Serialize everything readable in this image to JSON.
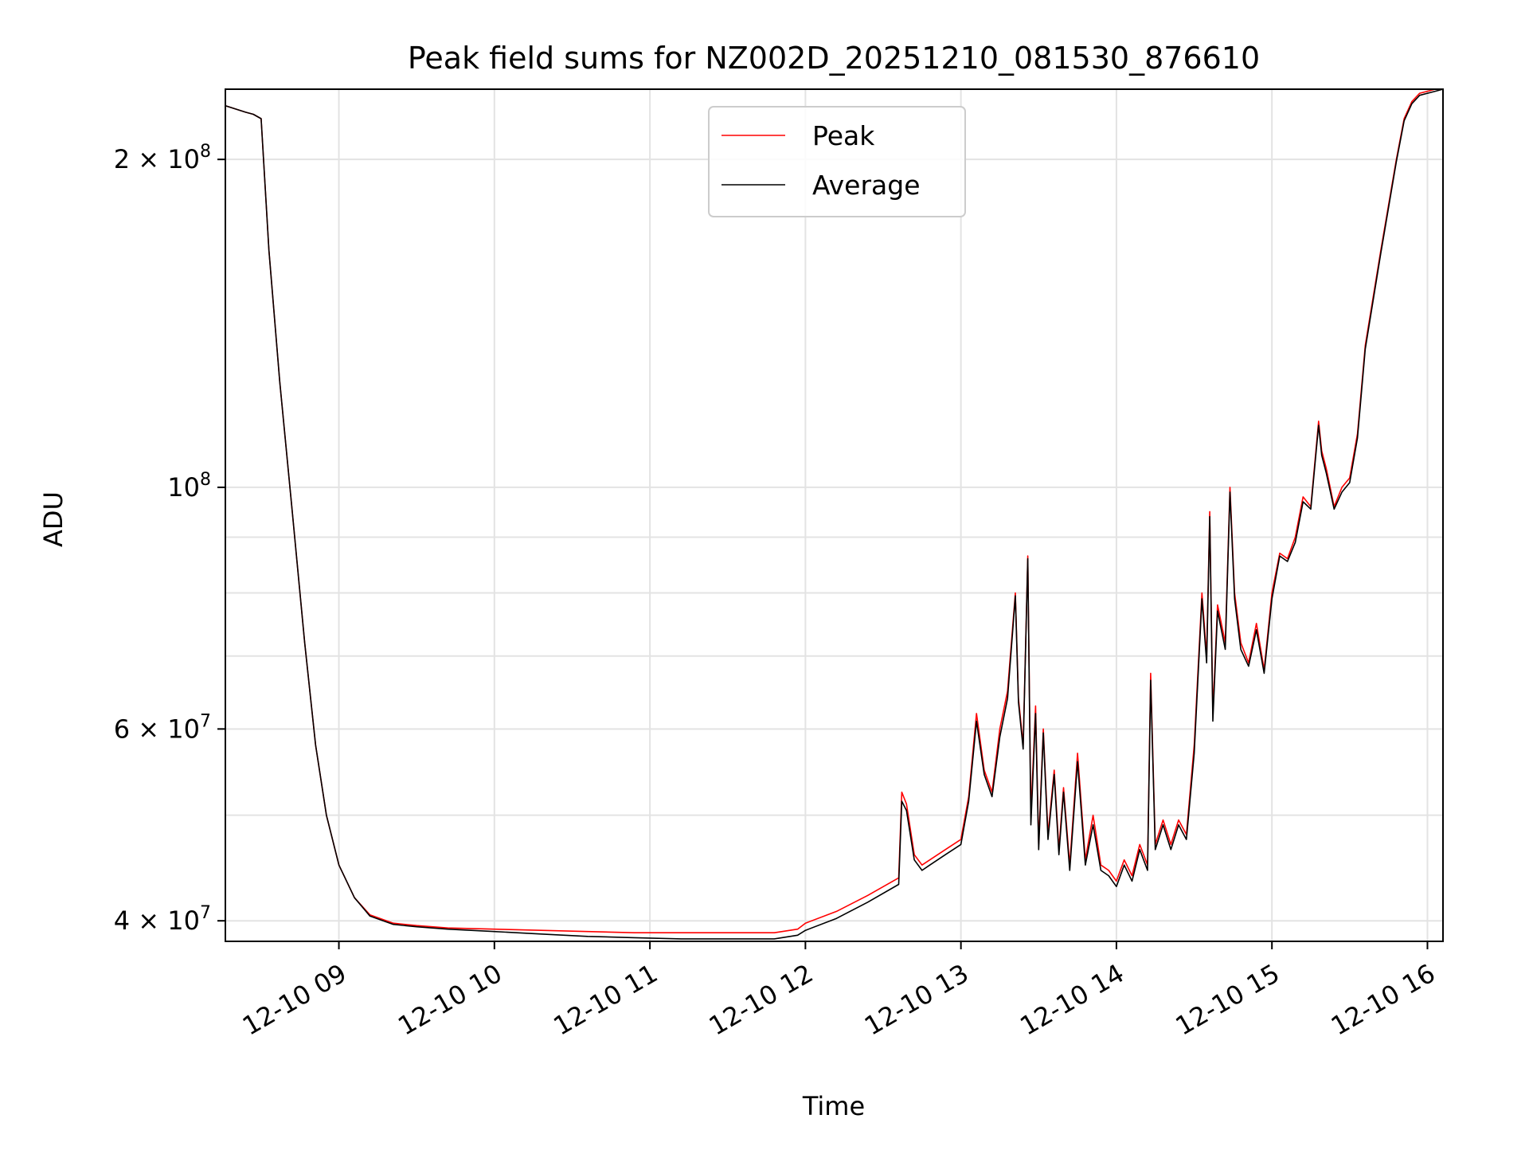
{
  "chart_data": {
    "type": "line",
    "title": "Peak field sums for NZ002D_20251210_081530_876610",
    "xlabel": "Time",
    "ylabel": "ADU",
    "yscale": "log",
    "xlim": [
      8.27,
      16.1
    ],
    "ylim": [
      38300000,
      232000000
    ],
    "grid": true,
    "legend": {
      "location": "upper-center",
      "entries": [
        "Peak",
        "Average"
      ]
    },
    "x_ticks": [
      {
        "value": 9,
        "label": "12-10 09"
      },
      {
        "value": 10,
        "label": "12-10 10"
      },
      {
        "value": 11,
        "label": "12-10 11"
      },
      {
        "value": 12,
        "label": "12-10 12"
      },
      {
        "value": 13,
        "label": "12-10 13"
      },
      {
        "value": 14,
        "label": "12-10 14"
      },
      {
        "value": 15,
        "label": "12-10 15"
      },
      {
        "value": 16,
        "label": "12-10 16"
      }
    ],
    "y_ticks_major": [
      {
        "value": 40000000,
        "mantissa": "4",
        "exp": "7",
        "times": true
      },
      {
        "value": 60000000,
        "mantissa": "6",
        "exp": "7",
        "times": true
      },
      {
        "value": 100000000,
        "mantissa": "10",
        "exp": "8",
        "times": false
      },
      {
        "value": 200000000,
        "mantissa": "2",
        "exp": "8",
        "times": true
      }
    ],
    "y_grid_minor": [
      50000000,
      70000000,
      80000000,
      90000000
    ],
    "series": [
      {
        "name": "Peak",
        "color": "#ff0000",
        "x": [
          8.27,
          8.4,
          8.45,
          8.5,
          8.55,
          8.62,
          8.7,
          8.78,
          8.85,
          8.92,
          9.0,
          9.1,
          9.2,
          9.35,
          9.5,
          9.7,
          10.0,
          10.3,
          10.6,
          10.9,
          11.2,
          11.5,
          11.8,
          11.95,
          12.0,
          12.2,
          12.4,
          12.6,
          12.62,
          12.65,
          12.7,
          12.75,
          12.8,
          12.9,
          13.0,
          13.05,
          13.1,
          13.15,
          13.2,
          13.25,
          13.3,
          13.35,
          13.37,
          13.4,
          13.43,
          13.45,
          13.48,
          13.5,
          13.53,
          13.56,
          13.6,
          13.63,
          13.66,
          13.7,
          13.75,
          13.8,
          13.85,
          13.9,
          13.95,
          14.0,
          14.05,
          14.1,
          14.15,
          14.2,
          14.22,
          14.25,
          14.3,
          14.35,
          14.4,
          14.45,
          14.5,
          14.55,
          14.58,
          14.6,
          14.62,
          14.65,
          14.7,
          14.73,
          14.76,
          14.8,
          14.85,
          14.9,
          14.95,
          15.0,
          15.05,
          15.1,
          15.15,
          15.2,
          15.25,
          15.3,
          15.32,
          15.35,
          15.4,
          15.45,
          15.5,
          15.55,
          15.6,
          15.7,
          15.8,
          15.85,
          15.9,
          15.95,
          16.0,
          16.05,
          16.1
        ],
        "y": [
          224000000,
          221000000,
          220000000,
          218000000,
          165000000,
          125000000,
          95000000,
          72000000,
          58000000,
          50000000,
          45000000,
          42000000,
          40500000,
          39800000,
          39600000,
          39400000,
          39300000,
          39200000,
          39100000,
          39000000,
          39000000,
          39000000,
          39000000,
          39300000,
          39800000,
          40800000,
          42200000,
          43800000,
          52500000,
          51200000,
          46000000,
          45000000,
          45500000,
          46500000,
          47500000,
          52000000,
          62000000,
          55000000,
          52500000,
          60000000,
          65000000,
          80000000,
          64000000,
          58000000,
          86500000,
          50000000,
          63000000,
          47000000,
          60000000,
          48000000,
          55000000,
          46500000,
          53000000,
          45000000,
          57000000,
          45500000,
          50000000,
          45000000,
          44500000,
          43500000,
          45500000,
          44000000,
          47000000,
          45000000,
          67500000,
          47000000,
          49500000,
          47000000,
          49500000,
          48000000,
          58000000,
          80000000,
          70000000,
          95000000,
          62000000,
          78000000,
          72000000,
          100000000,
          80000000,
          72000000,
          69000000,
          75000000,
          68000000,
          80000000,
          87000000,
          86000000,
          90000000,
          98000000,
          96000000,
          115000000,
          108000000,
          104000000,
          96000000,
          100000000,
          102000000,
          112000000,
          135000000,
          165000000,
          200000000,
          218000000,
          226000000,
          230000000,
          231000000,
          232000000,
          232000000
        ]
      },
      {
        "name": "Average",
        "color": "#000000",
        "x": [
          8.27,
          8.4,
          8.45,
          8.5,
          8.55,
          8.62,
          8.7,
          8.78,
          8.85,
          8.92,
          9.0,
          9.1,
          9.2,
          9.35,
          9.5,
          9.7,
          10.0,
          10.3,
          10.6,
          10.9,
          11.2,
          11.5,
          11.8,
          11.95,
          12.0,
          12.2,
          12.4,
          12.6,
          12.62,
          12.65,
          12.7,
          12.75,
          12.8,
          12.9,
          13.0,
          13.05,
          13.1,
          13.15,
          13.2,
          13.25,
          13.3,
          13.35,
          13.37,
          13.4,
          13.43,
          13.45,
          13.48,
          13.5,
          13.53,
          13.56,
          13.6,
          13.63,
          13.66,
          13.7,
          13.75,
          13.8,
          13.85,
          13.9,
          13.95,
          14.0,
          14.05,
          14.1,
          14.15,
          14.2,
          14.22,
          14.25,
          14.3,
          14.35,
          14.4,
          14.45,
          14.5,
          14.55,
          14.58,
          14.6,
          14.62,
          14.65,
          14.7,
          14.73,
          14.76,
          14.8,
          14.85,
          14.9,
          14.95,
          15.0,
          15.05,
          15.1,
          15.15,
          15.2,
          15.25,
          15.3,
          15.32,
          15.35,
          15.4,
          15.45,
          15.5,
          15.55,
          15.6,
          15.7,
          15.8,
          15.85,
          15.9,
          15.95,
          16.0,
          16.05,
          16.1
        ],
        "y": [
          224000000,
          221000000,
          220000000,
          218000000,
          165000000,
          125000000,
          95000000,
          72000000,
          58000000,
          50000000,
          45000000,
          42000000,
          40400000,
          39700000,
          39500000,
          39300000,
          39100000,
          38900000,
          38700000,
          38600000,
          38500000,
          38500000,
          38500000,
          38800000,
          39200000,
          40200000,
          41600000,
          43200000,
          51500000,
          50500000,
          45500000,
          44500000,
          45000000,
          46000000,
          47000000,
          51500000,
          61000000,
          54500000,
          52000000,
          59000000,
          64000000,
          79500000,
          63500000,
          57500000,
          86000000,
          49000000,
          62000000,
          46500000,
          59500000,
          47500000,
          54500000,
          46000000,
          52500000,
          44500000,
          56000000,
          45000000,
          49000000,
          44500000,
          44000000,
          43000000,
          45000000,
          43500000,
          46500000,
          44500000,
          66500000,
          46500000,
          49000000,
          46500000,
          49000000,
          47500000,
          57000000,
          79000000,
          69000000,
          94000000,
          61000000,
          77000000,
          71000000,
          99000000,
          79000000,
          71000000,
          68500000,
          74000000,
          67500000,
          79000000,
          86500000,
          85500000,
          89000000,
          97000000,
          95500000,
          114000000,
          107000000,
          103000000,
          95500000,
          99000000,
          101000000,
          111000000,
          134000000,
          164000000,
          199000000,
          217000000,
          225000000,
          229000000,
          230000000,
          231000000,
          232000000
        ]
      }
    ]
  }
}
